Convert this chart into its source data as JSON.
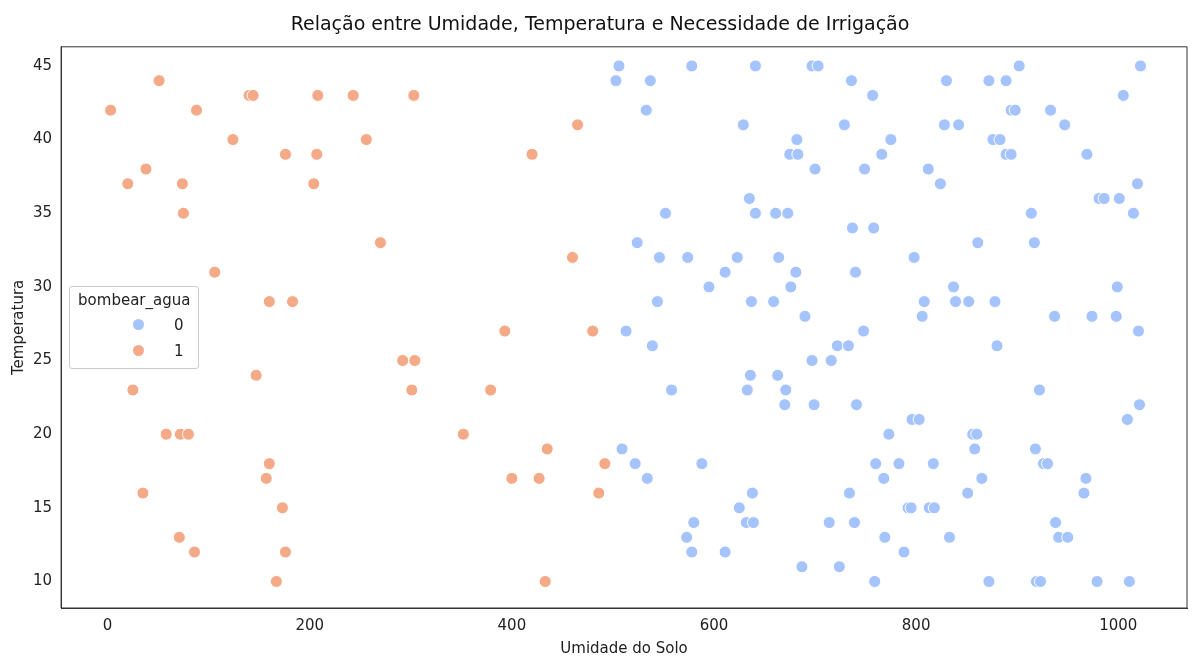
{
  "chart_data": {
    "type": "scatter",
    "title": "Relação entre Umidade, Temperatura e Necessidade de Irrigação",
    "xlabel": "Umidade do Solo",
    "ylabel": "Temperatura",
    "legend_title": "bombear_agua",
    "legend": "left",
    "marker": "circle",
    "grid": false,
    "xlim": [
      -46,
      1068
    ],
    "xticks": [
      0,
      200,
      400,
      600,
      800,
      1000
    ],
    "ylim": [
      8.2,
      46.3
    ],
    "yticks": [
      10,
      15,
      20,
      25,
      30,
      35,
      40,
      45
    ],
    "series": [
      {
        "name": "0",
        "color": "#a5c3fd",
        "x": [
          506,
          578,
          641,
          697,
          703,
          902,
          1022,
          503,
          537,
          736,
          830,
          872,
          889,
          757,
          1005,
          533,
          894,
          898,
          933,
          629,
          729,
          828,
          842,
          947,
          682,
          775,
          876,
          883,
          675,
          683,
          766,
          889,
          894,
          969,
          700,
          749,
          812,
          824,
          1019,
          635,
          981,
          986,
          1001,
          552,
          641,
          661,
          673,
          914,
          1015,
          737,
          758,
          524,
          861,
          917,
          546,
          574,
          623,
          664,
          798,
          611,
          681,
          740,
          595,
          676,
          837,
          999,
          544,
          637,
          659,
          808,
          839,
          852,
          878,
          690,
          806,
          937,
          974,
          998,
          513,
          748,
          1020,
          539,
          722,
          733,
          880,
          697,
          716,
          636,
          663,
          558,
          633,
          671,
          922,
          670,
          699,
          741,
          1021,
          796,
          803,
          1009,
          773,
          856,
          860,
          509,
          858,
          918,
          522,
          588,
          760,
          783,
          817,
          926,
          930,
          534,
          768,
          865,
          968,
          638,
          734,
          851,
          966,
          625,
          792,
          795,
          813,
          818,
          580,
          632,
          639,
          714,
          739,
          938,
          573,
          769,
          833,
          941,
          950,
          578,
          611,
          788,
          687,
          724,
          759,
          872,
          919,
          923,
          979,
          1011
        ],
        "values": [
          45,
          45,
          45,
          45,
          45,
          45,
          45,
          44,
          44,
          44,
          44,
          44,
          44,
          43,
          43,
          42,
          42,
          42,
          42,
          41,
          41,
          41,
          41,
          41,
          40,
          40,
          40,
          40,
          39,
          39,
          39,
          39,
          39,
          39,
          38,
          38,
          38,
          37,
          37,
          36,
          36,
          36,
          36,
          35,
          35,
          35,
          35,
          35,
          35,
          34,
          34,
          33,
          33,
          33,
          32,
          32,
          32,
          32,
          32,
          31,
          31,
          31,
          30,
          30,
          30,
          30,
          29,
          29,
          29,
          29,
          29,
          29,
          29,
          28,
          28,
          28,
          28,
          28,
          27,
          27,
          27,
          26,
          26,
          26,
          26,
          25,
          25,
          24,
          24,
          23,
          23,
          23,
          23,
          22,
          22,
          22,
          22,
          21,
          21,
          21,
          20,
          20,
          20,
          19,
          19,
          19,
          18,
          18,
          18,
          18,
          18,
          18,
          18,
          17,
          17,
          17,
          17,
          16,
          16,
          16,
          16,
          15,
          15,
          15,
          15,
          15,
          14,
          14,
          14,
          14,
          14,
          14,
          13,
          13,
          13,
          13,
          13,
          12,
          12,
          12,
          11,
          11,
          10,
          10,
          10,
          10,
          10,
          10
        ]
      },
      {
        "name": "1",
        "color": "#f4a987",
        "x": [
          3,
          51,
          20,
          38,
          74,
          75,
          88,
          124,
          140,
          144,
          106,
          176,
          208,
          207,
          204,
          243,
          256,
          303,
          270,
          160,
          183,
          147,
          25,
          58,
          72,
          80,
          160,
          157,
          35,
          173,
          71,
          86,
          176,
          167,
          292,
          304,
          301,
          393,
          379,
          352,
          400,
          427,
          435,
          433,
          420,
          465,
          460,
          480,
          492,
          486
        ],
        "values": [
          42,
          44,
          37,
          38,
          37,
          35,
          42,
          40,
          43,
          43,
          31,
          39,
          43,
          39,
          37,
          43,
          40,
          43,
          33,
          29,
          29,
          24,
          23,
          20,
          20,
          20,
          18,
          17,
          16,
          15,
          13,
          12,
          12,
          10,
          25,
          25,
          23,
          27,
          23,
          20,
          17,
          17,
          19,
          10,
          39,
          41,
          32,
          27,
          18,
          16
        ]
      }
    ]
  }
}
